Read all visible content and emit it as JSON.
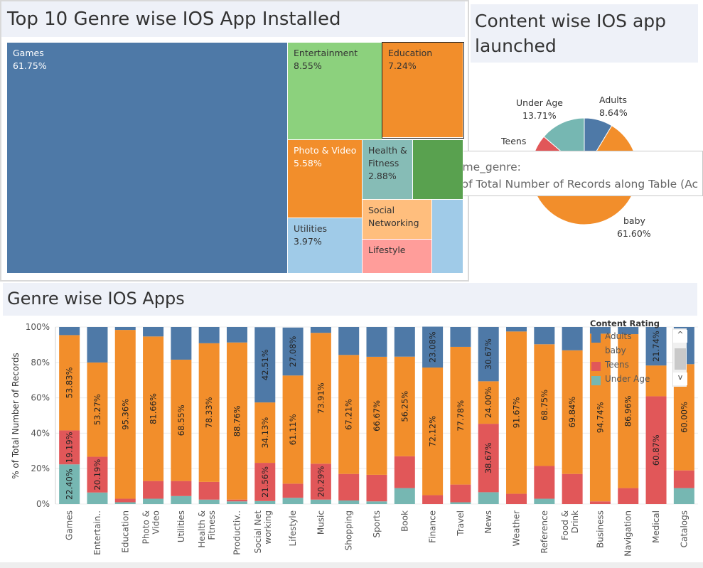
{
  "treemap": {
    "title": "Top 10 Genre wise IOS App Installed",
    "cells": [
      {
        "genre": "Games",
        "percent": "61.75%",
        "color": "#4e79a7",
        "text_color": "#ffffff"
      },
      {
        "genre": "Entertainment",
        "percent": "8.55%",
        "color": "#8cd17d",
        "text_color": "#333333"
      },
      {
        "genre": "Education",
        "percent": "7.24%",
        "color": "#f28e2b",
        "text_color": "#333333"
      },
      {
        "genre": "Photo & Video",
        "percent": "5.58%",
        "color": "#f28e2b",
        "text_color": "#ffffff"
      },
      {
        "genre": "Health & Fitness",
        "percent": "2.88%",
        "color": "#86bcb6",
        "text_color": "#333333"
      },
      {
        "genre": "",
        "percent": "",
        "color": "#59a14f",
        "text_color": "#333333"
      },
      {
        "genre": "Utilities",
        "percent": "3.97%",
        "color": "#a0cbe8",
        "text_color": "#333333"
      },
      {
        "genre": "Social Networking",
        "percent": "",
        "color": "#ffbe7d",
        "text_color": "#333333"
      },
      {
        "genre": "Lifestyle",
        "percent": "",
        "color": "#ff9d9a",
        "text_color": "#333333"
      },
      {
        "genre": "",
        "percent": "",
        "color": "#a0cbe8",
        "text_color": "#333333"
      }
    ]
  },
  "pie": {
    "title": "Content wise IOS app launched",
    "slices": [
      {
        "name": "Adults",
        "percent": "8.64%",
        "value": 8.64,
        "color": "#4e79a7"
      },
      {
        "name": "baby",
        "percent": "61.60%",
        "value": 61.6,
        "color": "#f28e2b"
      },
      {
        "name": "Teens",
        "percent": "",
        "value": 16.05,
        "color": "#e15759"
      },
      {
        "name": "Under Age",
        "percent": "13.71%",
        "value": 13.71,
        "color": "#76b7b2"
      }
    ]
  },
  "tooltip": {
    "line1": "prime_genre:",
    "line2": "% of Total Number of Records along Table (Ac"
  },
  "chart_data": {
    "type": "bar",
    "stacked": true,
    "title": "Genre wise IOS Apps",
    "ylabel": "% of Total Number of Records",
    "xlabel": "",
    "ylim": [
      0,
      100
    ],
    "yticks": [
      "0%",
      "20%",
      "40%",
      "60%",
      "80%",
      "100%"
    ],
    "categories": [
      "Games",
      "Entertain..",
      "Education",
      "Photo & Video",
      "Utilities",
      "Health & Fitness",
      "Productiv..",
      "Social Net working",
      "Lifestyle",
      "Music",
      "Shopping",
      "Sports",
      "Book",
      "Finance",
      "Travel",
      "News",
      "Weather",
      "Reference",
      "Food & Drink",
      "Business",
      "Navigation",
      "Medical",
      "Catalogs"
    ],
    "series": [
      {
        "name": "Under Age",
        "color": "#76b7b2",
        "values": [
          22.4,
          6.5,
          1.0,
          3.0,
          4.5,
          2.5,
          1.5,
          1.7,
          3.5,
          2.5,
          2.0,
          1.5,
          9.0,
          0.0,
          1.0,
          6.67,
          0.0,
          3.0,
          0.0,
          0.0,
          0.0,
          0.0,
          9.0
        ],
        "labels": [
          "22.40%",
          "",
          "",
          "",
          "",
          "",
          "",
          "",
          "",
          "",
          "",
          "",
          "",
          "",
          "",
          "",
          "",
          "",
          "",
          "",
          "",
          "",
          ""
        ]
      },
      {
        "name": "Teens",
        "color": "#e15759",
        "values": [
          19.19,
          20.19,
          2.0,
          10.0,
          8.5,
          10.0,
          1.0,
          21.56,
          8.0,
          20.29,
          15.0,
          15.0,
          18.0,
          5.0,
          10.0,
          38.67,
          5.8,
          18.5,
          17.0,
          1.5,
          9.0,
          60.87,
          10.0
        ],
        "labels": [
          "19.19%",
          "20.19%",
          "",
          "",
          "",
          "",
          "",
          "21.56%",
          "",
          "20.29%",
          "",
          "",
          "",
          "",
          "",
          "38.67%",
          "",
          "",
          "",
          "",
          "",
          "60.87%",
          ""
        ]
      },
      {
        "name": "baby",
        "color": "#f28e2b",
        "values": [
          53.83,
          53.27,
          95.36,
          81.66,
          68.55,
          78.33,
          88.76,
          34.13,
          61.11,
          73.91,
          67.21,
          66.67,
          56.25,
          72.12,
          77.78,
          24.0,
          91.67,
          68.75,
          69.84,
          94.74,
          86.96,
          17.39,
          60.0
        ],
        "labels": [
          "53.83%",
          "53.27%",
          "95.36%",
          "81.66%",
          "68.55%",
          "78.33%",
          "88.76%",
          "34.13%",
          "61.11%",
          "73.91%",
          "67.21%",
          "66.67%",
          "56.25%",
          "72.12%",
          "77.78%",
          "24.00%",
          "91.67%",
          "68.75%",
          "69.84%",
          "94.74%",
          "86.96%",
          "",
          "60.00%"
        ]
      },
      {
        "name": "Adults",
        "color": "#4e79a7",
        "values": [
          4.58,
          20.04,
          1.64,
          5.34,
          18.45,
          9.17,
          8.74,
          42.51,
          27.08,
          3.3,
          15.79,
          16.83,
          16.75,
          23.08,
          11.22,
          30.67,
          2.53,
          9.75,
          13.16,
          3.76,
          4.04,
          21.74,
          21.0
        ],
        "labels": [
          "",
          "",
          "",
          "",
          "",
          "",
          "",
          "42.51%",
          "27.08%",
          "",
          "",
          "",
          "",
          "23.08%",
          "",
          "30.67%",
          "",
          "",
          "",
          "",
          "",
          "21.74%",
          ""
        ]
      }
    ]
  },
  "legend": {
    "title": "Content Rating",
    "items": [
      {
        "name": "Adults",
        "color": "#4e79a7"
      },
      {
        "name": "baby",
        "color": "#f28e2b"
      },
      {
        "name": "Teens",
        "color": "#e15759"
      },
      {
        "name": "Under Age",
        "color": "#76b7b2"
      }
    ],
    "scroll_up": "^",
    "scroll_down": "v"
  }
}
